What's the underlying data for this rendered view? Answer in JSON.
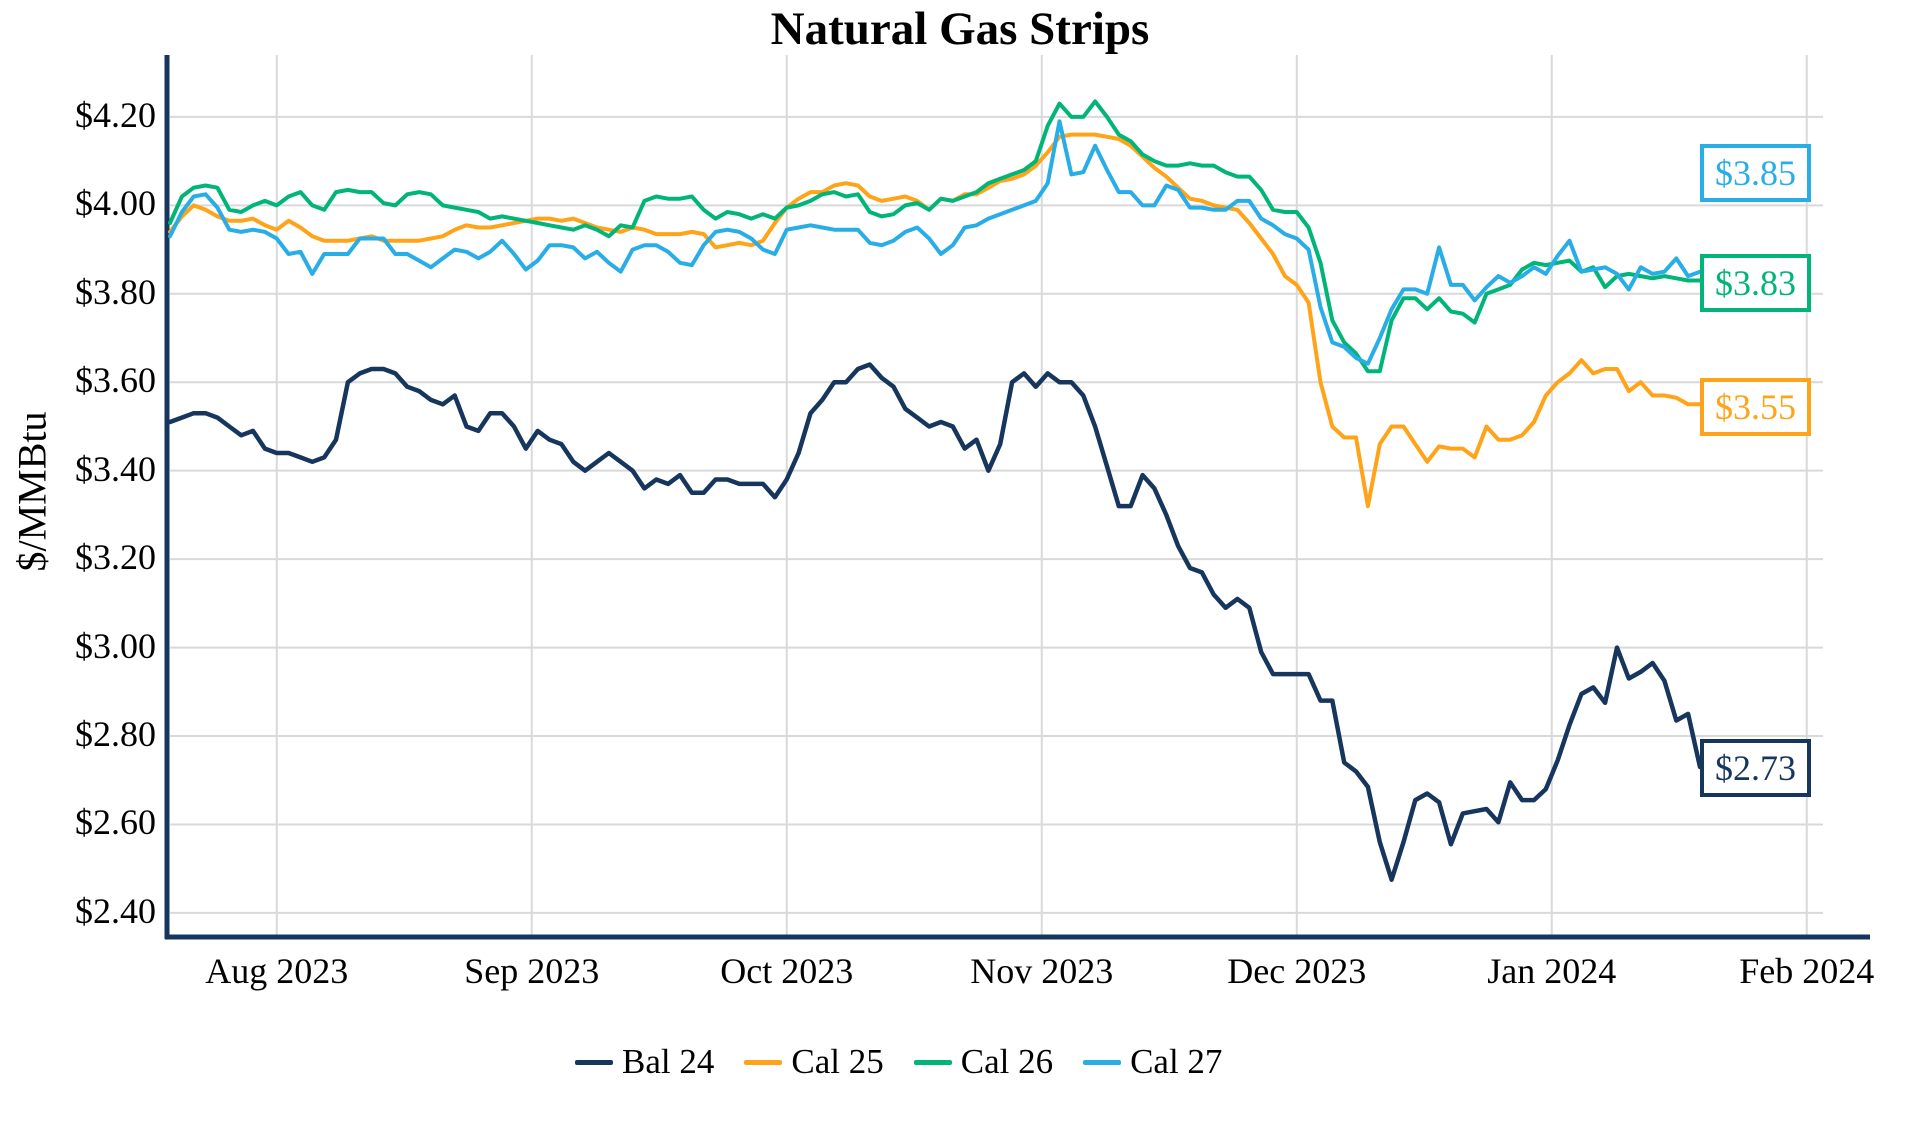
{
  "chart_data": {
    "type": "line",
    "title": "Natural Gas Strips",
    "ylabel": "$/MMBtu",
    "background_color": "#ffffff",
    "grid_color": "#d9d9d9",
    "axis_color": "#17365d",
    "grid": true,
    "legend_position": "bottom",
    "x_axis": {
      "ticks": [
        {
          "label": "Aug 2023",
          "index": 9
        },
        {
          "label": "Sep 2023",
          "index": 30.5
        },
        {
          "label": "Oct 2023",
          "index": 52
        },
        {
          "label": "Nov 2023",
          "index": 73.5
        },
        {
          "label": "Dec 2023",
          "index": 95
        },
        {
          "label": "Jan 2024",
          "index": 116.5
        },
        {
          "label": "Feb 2024",
          "index": 138
        }
      ]
    },
    "y_axis": {
      "ylim": [
        2.35,
        4.34
      ],
      "ticks": [
        {
          "label": "$4.20",
          "value": 4.2
        },
        {
          "label": "$4.00",
          "value": 4.0
        },
        {
          "label": "$3.80",
          "value": 3.8
        },
        {
          "label": "$3.60",
          "value": 3.6
        },
        {
          "label": "$3.40",
          "value": 3.4
        },
        {
          "label": "$3.20",
          "value": 3.2
        },
        {
          "label": "$3.00",
          "value": 3.0
        },
        {
          "label": "$2.80",
          "value": 2.8
        },
        {
          "label": "$2.60",
          "value": 2.6
        },
        {
          "label": "$2.40",
          "value": 2.4
        }
      ]
    },
    "series": [
      {
        "name": "Bal 24",
        "color": "#17365d",
        "end_label": "$2.73",
        "values": [
          3.51,
          3.52,
          3.53,
          3.53,
          3.52,
          3.5,
          3.48,
          3.49,
          3.45,
          3.44,
          3.44,
          3.43,
          3.42,
          3.43,
          3.47,
          3.6,
          3.62,
          3.63,
          3.63,
          3.62,
          3.59,
          3.58,
          3.56,
          3.55,
          3.57,
          3.5,
          3.49,
          3.53,
          3.53,
          3.5,
          3.45,
          3.49,
          3.47,
          3.46,
          3.42,
          3.4,
          3.42,
          3.44,
          3.42,
          3.4,
          3.36,
          3.38,
          3.37,
          3.39,
          3.35,
          3.35,
          3.38,
          3.38,
          3.37,
          3.37,
          3.37,
          3.34,
          3.38,
          3.44,
          3.53,
          3.56,
          3.6,
          3.6,
          3.63,
          3.64,
          3.61,
          3.59,
          3.54,
          3.52,
          3.5,
          3.51,
          3.5,
          3.45,
          3.47,
          3.4,
          3.46,
          3.6,
          3.62,
          3.59,
          3.62,
          3.6,
          3.6,
          3.57,
          3.5,
          3.41,
          3.32,
          3.32,
          3.39,
          3.36,
          3.3,
          3.23,
          3.18,
          3.17,
          3.12,
          3.09,
          3.11,
          3.09,
          2.99,
          2.94,
          2.94,
          2.94,
          2.94,
          2.88,
          2.88,
          2.74,
          2.72,
          2.685,
          2.56,
          2.475,
          2.56,
          2.655,
          2.67,
          2.65,
          2.555,
          2.625,
          2.63,
          2.635,
          2.605,
          2.695,
          2.655,
          2.655,
          2.68,
          2.745,
          2.825,
          2.895,
          2.91,
          2.875,
          3.0,
          2.93,
          2.945,
          2.965,
          2.925,
          2.835,
          2.85,
          2.73
        ]
      },
      {
        "name": "Cal 25",
        "color": "#ffa319",
        "end_label": "$3.55",
        "values": [
          3.94,
          3.975,
          4.0,
          3.99,
          3.975,
          3.965,
          3.965,
          3.97,
          3.955,
          3.945,
          3.965,
          3.95,
          3.93,
          3.92,
          3.92,
          3.92,
          3.925,
          3.93,
          3.92,
          3.92,
          3.92,
          3.92,
          3.925,
          3.93,
          3.945,
          3.955,
          3.95,
          3.95,
          3.955,
          3.96,
          3.965,
          3.97,
          3.97,
          3.965,
          3.97,
          3.96,
          3.95,
          3.945,
          3.94,
          3.95,
          3.945,
          3.935,
          3.935,
          3.935,
          3.94,
          3.935,
          3.905,
          3.91,
          3.915,
          3.91,
          3.92,
          3.96,
          3.995,
          4.015,
          4.03,
          4.03,
          4.045,
          4.05,
          4.045,
          4.02,
          4.01,
          4.015,
          4.02,
          4.01,
          3.99,
          4.015,
          4.01,
          4.025,
          4.025,
          4.04,
          4.055,
          4.06,
          4.07,
          4.09,
          4.12,
          4.155,
          4.16,
          4.16,
          4.16,
          4.155,
          4.15,
          4.135,
          4.11,
          4.085,
          4.065,
          4.04,
          4.015,
          4.01,
          4.0,
          3.995,
          3.99,
          3.96,
          3.925,
          3.89,
          3.84,
          3.82,
          3.78,
          3.6,
          3.5,
          3.475,
          3.475,
          3.32,
          3.46,
          3.5,
          3.5,
          3.46,
          3.42,
          3.455,
          3.45,
          3.45,
          3.43,
          3.5,
          3.47,
          3.47,
          3.48,
          3.51,
          3.57,
          3.6,
          3.62,
          3.65,
          3.62,
          3.63,
          3.63,
          3.58,
          3.6,
          3.57,
          3.57,
          3.565,
          3.55,
          3.55
        ]
      },
      {
        "name": "Cal 26",
        "color": "#00b577",
        "end_label": "$3.83",
        "values": [
          3.96,
          4.02,
          4.04,
          4.045,
          4.04,
          3.99,
          3.985,
          4.0,
          4.01,
          4.0,
          4.02,
          4.03,
          4.0,
          3.99,
          4.03,
          4.035,
          4.03,
          4.03,
          4.005,
          4.0,
          4.025,
          4.03,
          4.025,
          4.0,
          3.995,
          3.99,
          3.985,
          3.97,
          3.975,
          3.97,
          3.965,
          3.96,
          3.955,
          3.95,
          3.945,
          3.955,
          3.945,
          3.93,
          3.955,
          3.95,
          4.01,
          4.02,
          4.015,
          4.015,
          4.02,
          3.99,
          3.97,
          3.985,
          3.98,
          3.97,
          3.98,
          3.97,
          3.995,
          4.0,
          4.01,
          4.025,
          4.03,
          4.02,
          4.025,
          3.985,
          3.975,
          3.98,
          4.0,
          4.005,
          3.99,
          4.015,
          4.01,
          4.02,
          4.03,
          4.05,
          4.06,
          4.07,
          4.08,
          4.1,
          4.18,
          4.23,
          4.2,
          4.2,
          4.235,
          4.2,
          4.16,
          4.145,
          4.115,
          4.1,
          4.09,
          4.09,
          4.095,
          4.09,
          4.09,
          4.075,
          4.065,
          4.065,
          4.035,
          3.99,
          3.985,
          3.985,
          3.95,
          3.87,
          3.74,
          3.69,
          3.665,
          3.625,
          3.625,
          3.74,
          3.79,
          3.79,
          3.765,
          3.79,
          3.76,
          3.755,
          3.735,
          3.8,
          3.81,
          3.82,
          3.855,
          3.87,
          3.865,
          3.87,
          3.875,
          3.85,
          3.86,
          3.815,
          3.84,
          3.845,
          3.84,
          3.835,
          3.84,
          3.835,
          3.83,
          3.83
        ]
      },
      {
        "name": "Cal 27",
        "color": "#29ade6",
        "end_label": "$3.85",
        "values": [
          3.93,
          3.985,
          4.02,
          4.025,
          3.995,
          3.945,
          3.94,
          3.945,
          3.94,
          3.925,
          3.89,
          3.895,
          3.845,
          3.89,
          3.89,
          3.89,
          3.925,
          3.925,
          3.925,
          3.89,
          3.89,
          3.875,
          3.86,
          3.88,
          3.9,
          3.895,
          3.88,
          3.895,
          3.92,
          3.89,
          3.855,
          3.875,
          3.91,
          3.91,
          3.905,
          3.88,
          3.895,
          3.87,
          3.85,
          3.9,
          3.91,
          3.91,
          3.895,
          3.87,
          3.865,
          3.91,
          3.94,
          3.945,
          3.94,
          3.925,
          3.9,
          3.89,
          3.945,
          3.95,
          3.955,
          3.95,
          3.945,
          3.945,
          3.945,
          3.915,
          3.91,
          3.92,
          3.94,
          3.95,
          3.925,
          3.89,
          3.91,
          3.95,
          3.955,
          3.97,
          3.98,
          3.99,
          4.0,
          4.01,
          4.05,
          4.19,
          4.07,
          4.075,
          4.135,
          4.08,
          4.03,
          4.03,
          4.0,
          4.0,
          4.045,
          4.035,
          3.995,
          3.995,
          3.99,
          3.99,
          4.01,
          4.01,
          3.97,
          3.955,
          3.935,
          3.925,
          3.9,
          3.77,
          3.69,
          3.68,
          3.655,
          3.642,
          3.7,
          3.765,
          3.81,
          3.81,
          3.8,
          3.905,
          3.82,
          3.82,
          3.785,
          3.815,
          3.84,
          3.825,
          3.84,
          3.86,
          3.845,
          3.886,
          3.92,
          3.85,
          3.855,
          3.86,
          3.845,
          3.81,
          3.86,
          3.845,
          3.85,
          3.88,
          3.84,
          3.85
        ]
      }
    ]
  }
}
